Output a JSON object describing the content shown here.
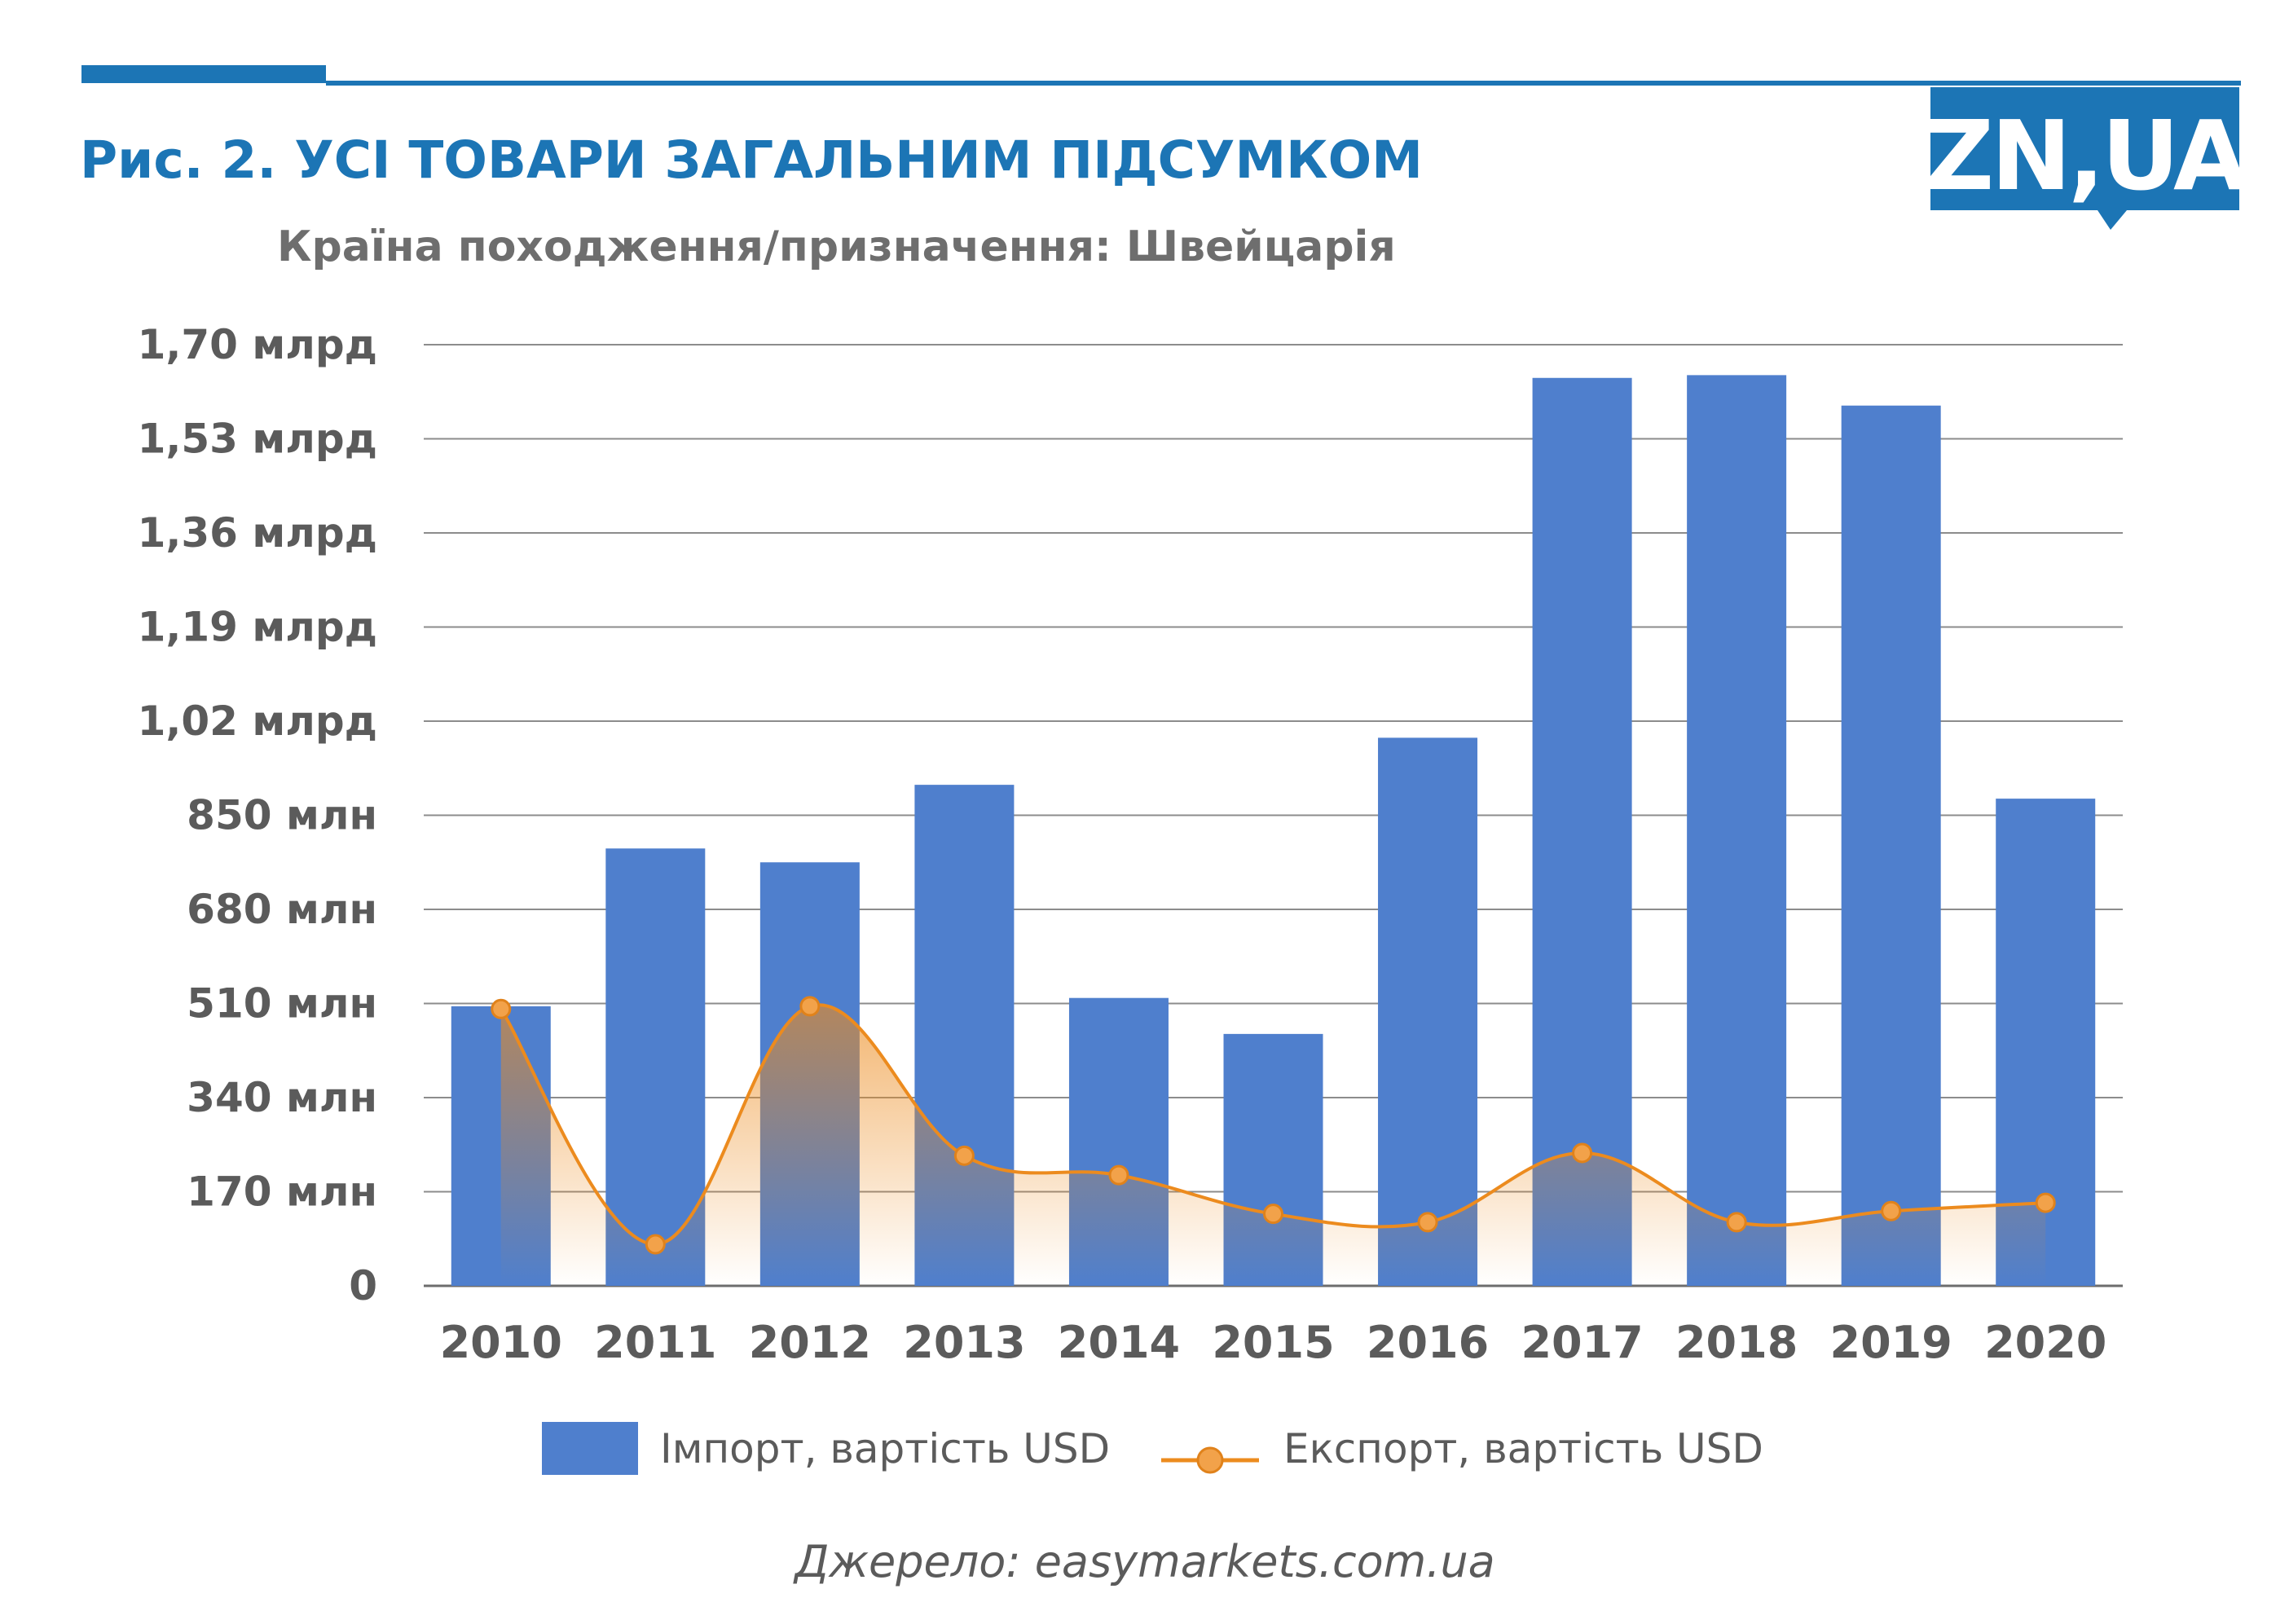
{
  "header": {
    "title": "Рис. 2. УСІ ТОВАРИ ЗАГАЛЬНИМ ПІДСУМКОМ",
    "subtitle": "Країна походження/призначення: Швейцарія"
  },
  "logo": {
    "text": "ZN,UA"
  },
  "colors": {
    "accent": "#1c75b5",
    "bar": "#4f7fcd",
    "line": "#ec8b1e",
    "marker": "#f2a24a",
    "grid": "#8c8c8c",
    "text": "#5b5b5b"
  },
  "chart_data": {
    "type": "bar",
    "title": "Рис. 2. УСІ ТОВАРИ ЗАГАЛЬНИМ ПІДСУМКОМ",
    "subtitle": "Країна походження/призначення: Швейцарія",
    "categories": [
      "2010",
      "2011",
      "2012",
      "2013",
      "2014",
      "2015",
      "2016",
      "2017",
      "2018",
      "2019",
      "2020"
    ],
    "series": [
      {
        "name": "Імпорт, вартість USD",
        "type": "bar",
        "color": "#4f7fcd",
        "values": [
          505,
          790,
          765,
          905,
          520,
          455,
          990,
          1640,
          1645,
          1590,
          880
        ]
      },
      {
        "name": "Експорт, вартість USD",
        "type": "area-line",
        "color": "#ec8b1e",
        "values": [
          500,
          75,
          505,
          235,
          200,
          130,
          115,
          240,
          115,
          135,
          150
        ]
      }
    ],
    "ylim": [
      0,
      1700
    ],
    "yticks": [
      0,
      170,
      340,
      510,
      680,
      850,
      1020,
      1190,
      1360,
      1530,
      1700
    ],
    "ytick_labels": [
      "0",
      "170 млн",
      "340 млн",
      "510 млн",
      "680 млн",
      "850 млн",
      "1,02 млрд",
      "1,19 млрд",
      "1,36 млрд",
      "1,53 млрд",
      "1,70 млрд"
    ],
    "xlabel": "",
    "ylabel": "",
    "grid": true,
    "legend": "bottom-center"
  },
  "source": "Джерело: easymarkets.com.ua"
}
